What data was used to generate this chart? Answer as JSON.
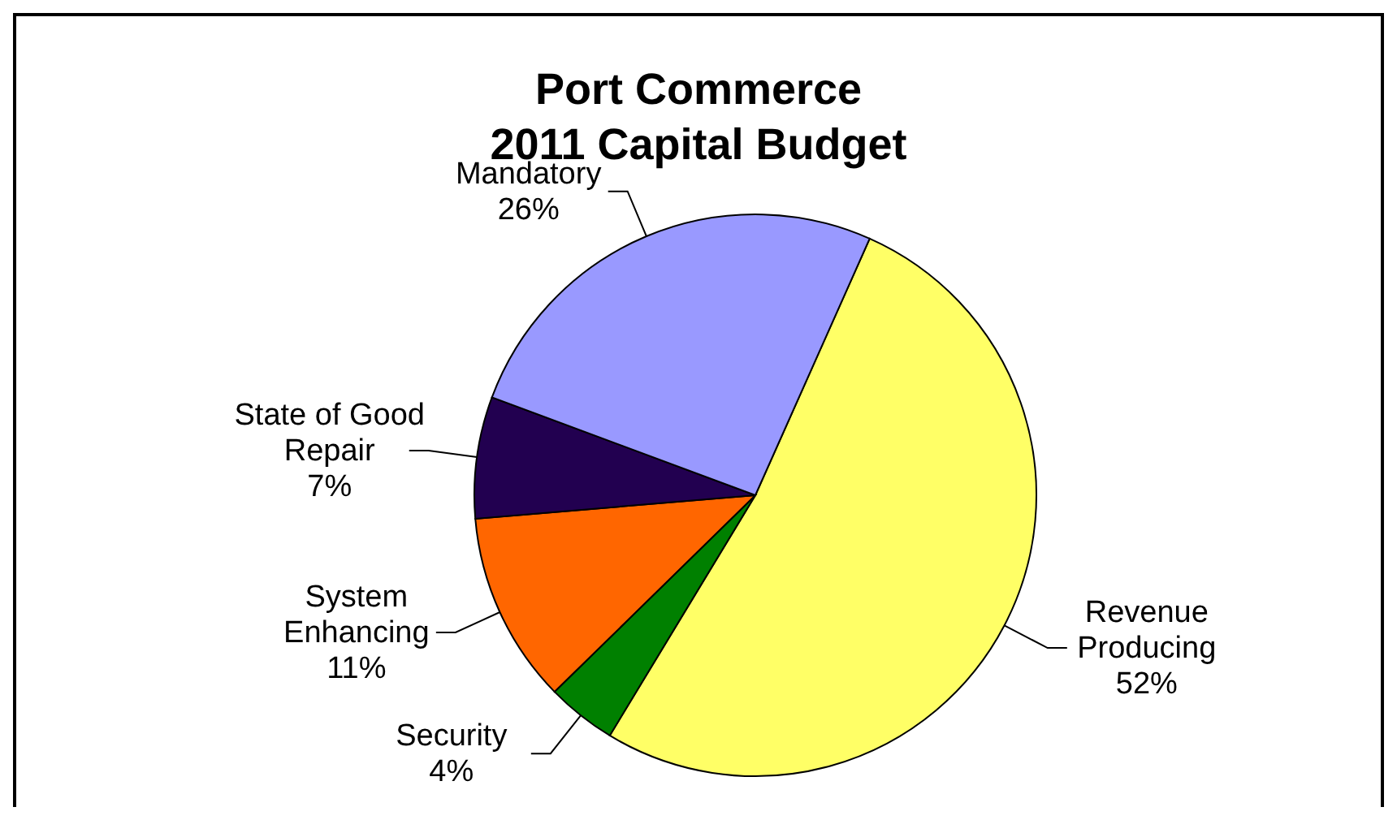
{
  "chart_data": {
    "type": "pie",
    "title": "Port Commerce\n2011 Capital Budget",
    "categories": [
      "Revenue Producing",
      "Security",
      "System Enhancing",
      "State of Good Repair",
      "Mandatory"
    ],
    "values": [
      52,
      4,
      11,
      7,
      26
    ],
    "value_labels": [
      "52%",
      "4%",
      "11%",
      "7%",
      "26%"
    ],
    "colors": [
      "#ffff66",
      "#008000",
      "#ff6600",
      "#220050",
      "#9999ff"
    ],
    "legend": false
  }
}
